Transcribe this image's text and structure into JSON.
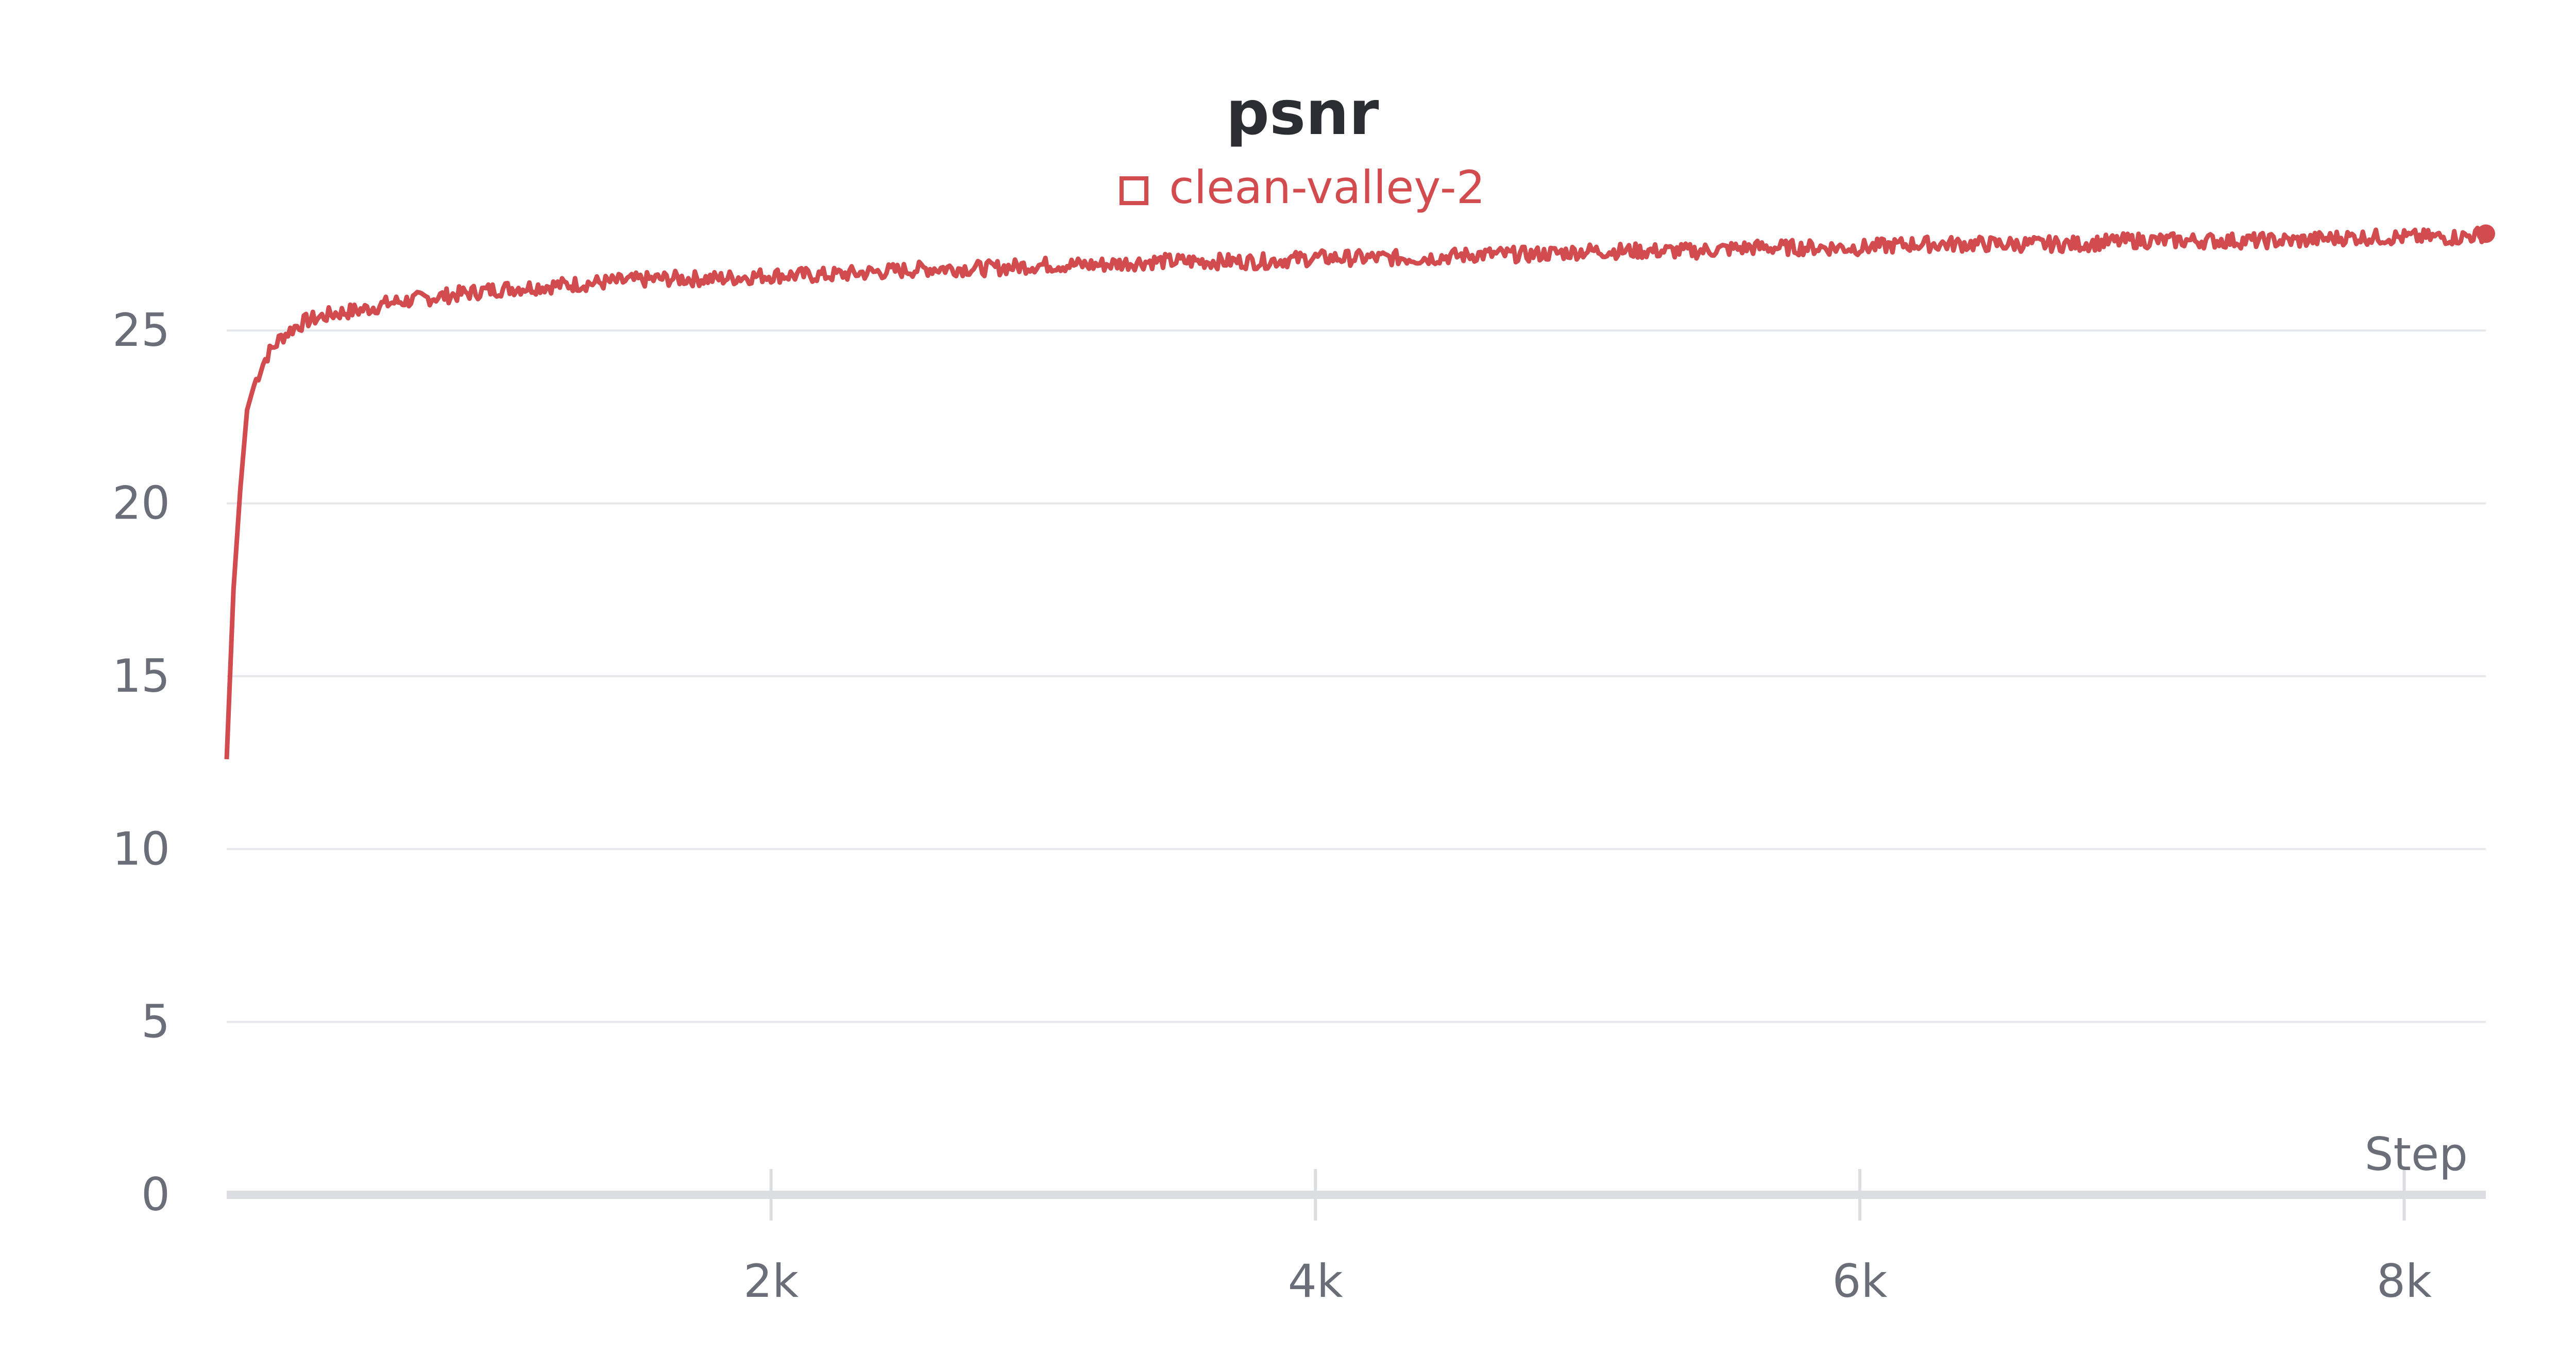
{
  "chart_data": {
    "type": "line",
    "title": "psnr",
    "xlabel": "Step",
    "ylabel": "",
    "xlim": [
      0,
      8300
    ],
    "ylim": [
      0,
      28
    ],
    "grid": true,
    "legend_position": "top-center",
    "x_ticks": [
      {
        "value": 2000,
        "label": "2k"
      },
      {
        "value": 4000,
        "label": "4k"
      },
      {
        "value": 6000,
        "label": "6k"
      },
      {
        "value": 8000,
        "label": "8k"
      }
    ],
    "y_ticks": [
      {
        "value": 0,
        "label": "0"
      },
      {
        "value": 5,
        "label": "5"
      },
      {
        "value": 10,
        "label": "10"
      },
      {
        "value": 15,
        "label": "15"
      },
      {
        "value": 20,
        "label": "20"
      },
      {
        "value": 25,
        "label": "25"
      }
    ],
    "series": [
      {
        "name": "clean-valley-2",
        "color": "#d24b4e",
        "x": [
          0,
          25,
          50,
          75,
          100,
          125,
          150,
          200,
          250,
          300,
          350,
          400,
          500,
          600,
          700,
          800,
          900,
          1000,
          1200,
          1400,
          1600,
          1800,
          2000,
          2200,
          2400,
          2600,
          2800,
          3000,
          3200,
          3400,
          3600,
          3800,
          4000,
          4200,
          4400,
          4600,
          4800,
          5000,
          5200,
          5400,
          5600,
          5800,
          6000,
          6200,
          6400,
          6600,
          6800,
          7000,
          7200,
          7400,
          7600,
          7800,
          8000,
          8200,
          8300
        ],
        "y": [
          12.6,
          17.5,
          20.4,
          22.7,
          23.4,
          23.9,
          24.3,
          24.8,
          25.1,
          25.3,
          25.4,
          25.5,
          25.6,
          25.8,
          25.9,
          26.0,
          26.1,
          26.2,
          26.3,
          26.4,
          26.5,
          26.5,
          26.6,
          26.6,
          26.7,
          26.8,
          26.8,
          26.9,
          26.9,
          27.0,
          27.0,
          27.0,
          27.1,
          27.1,
          27.1,
          27.2,
          27.2,
          27.3,
          27.3,
          27.3,
          27.4,
          27.4,
          27.4,
          27.5,
          27.5,
          27.5,
          27.5,
          27.6,
          27.6,
          27.6,
          27.6,
          27.7,
          27.7,
          27.7,
          27.8
        ]
      }
    ]
  }
}
